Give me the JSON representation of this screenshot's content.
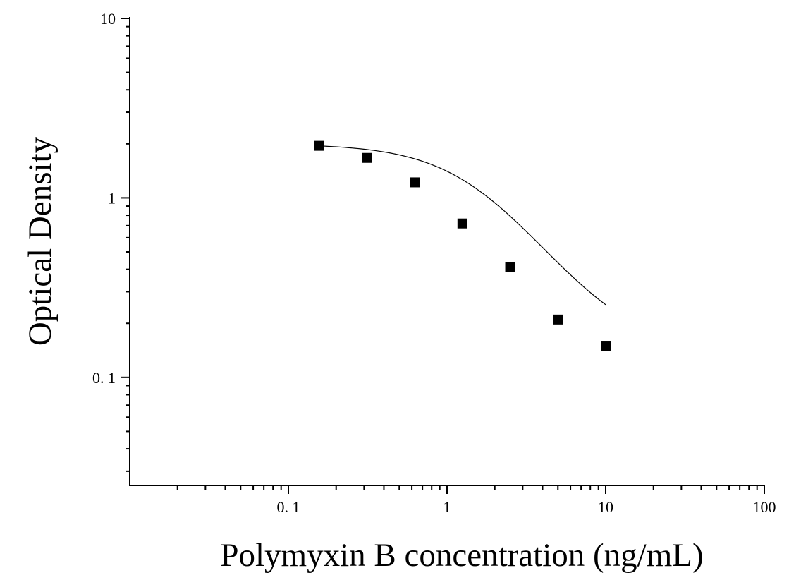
{
  "chart_data": {
    "type": "scatter",
    "title": "",
    "xlabel": "Polymyxin B concentration (ng/mL)",
    "ylabel": "Optical Density",
    "x_scale": "log",
    "y_scale": "log",
    "xlim": [
      0.01,
      100
    ],
    "ylim": [
      0.025,
      10
    ],
    "x_ticks": [
      {
        "value": 0.1,
        "label": "0. 1"
      },
      {
        "value": 1,
        "label": "1"
      },
      {
        "value": 10,
        "label": "10"
      },
      {
        "value": 100,
        "label": "100"
      }
    ],
    "y_ticks": [
      {
        "value": 0.1,
        "label": "0. 1"
      },
      {
        "value": 1,
        "label": "1"
      },
      {
        "value": 10,
        "label": "10"
      }
    ],
    "grid": false,
    "legend": "none",
    "marker": "square",
    "marker_color": "#000000",
    "series": [
      {
        "x": [
          0.15625,
          0.3125,
          0.625,
          1.25,
          2.5,
          5,
          10
        ],
        "y": [
          1.95,
          1.67,
          1.22,
          0.72,
          0.41,
          0.21,
          0.15
        ]
      }
    ],
    "fit": {
      "model": "4PL",
      "top": 2.0,
      "bottom": 0.136,
      "ec50": 1.66,
      "hill": 1.5
    }
  }
}
